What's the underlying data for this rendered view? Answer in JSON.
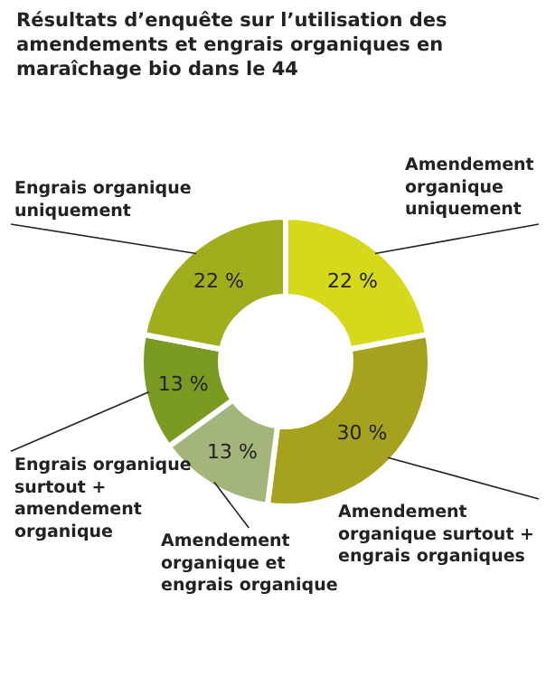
{
  "chart_data": {
    "type": "donut",
    "title": "Résultats d’enquête sur l’utilisation des amendements et engrais organiques en maraîchage bio dans le 44",
    "categories": [
      "Amendement organique uniquement",
      "Amendement organique surtout + engrais organiques",
      "Amendement organique et engrais organique",
      "Engrais organique surtout + amendement organique",
      "Engrais organique uniquement"
    ],
    "values": [
      22,
      30,
      13,
      13,
      22
    ],
    "value_labels": [
      "22 %",
      "30 %",
      "13 %",
      "13 %",
      "22 %"
    ],
    "colors": [
      "#d6d81a",
      "#a6a21e",
      "#a3b57a",
      "#7a9a22",
      "#a0ae1e"
    ],
    "legend": false
  }
}
